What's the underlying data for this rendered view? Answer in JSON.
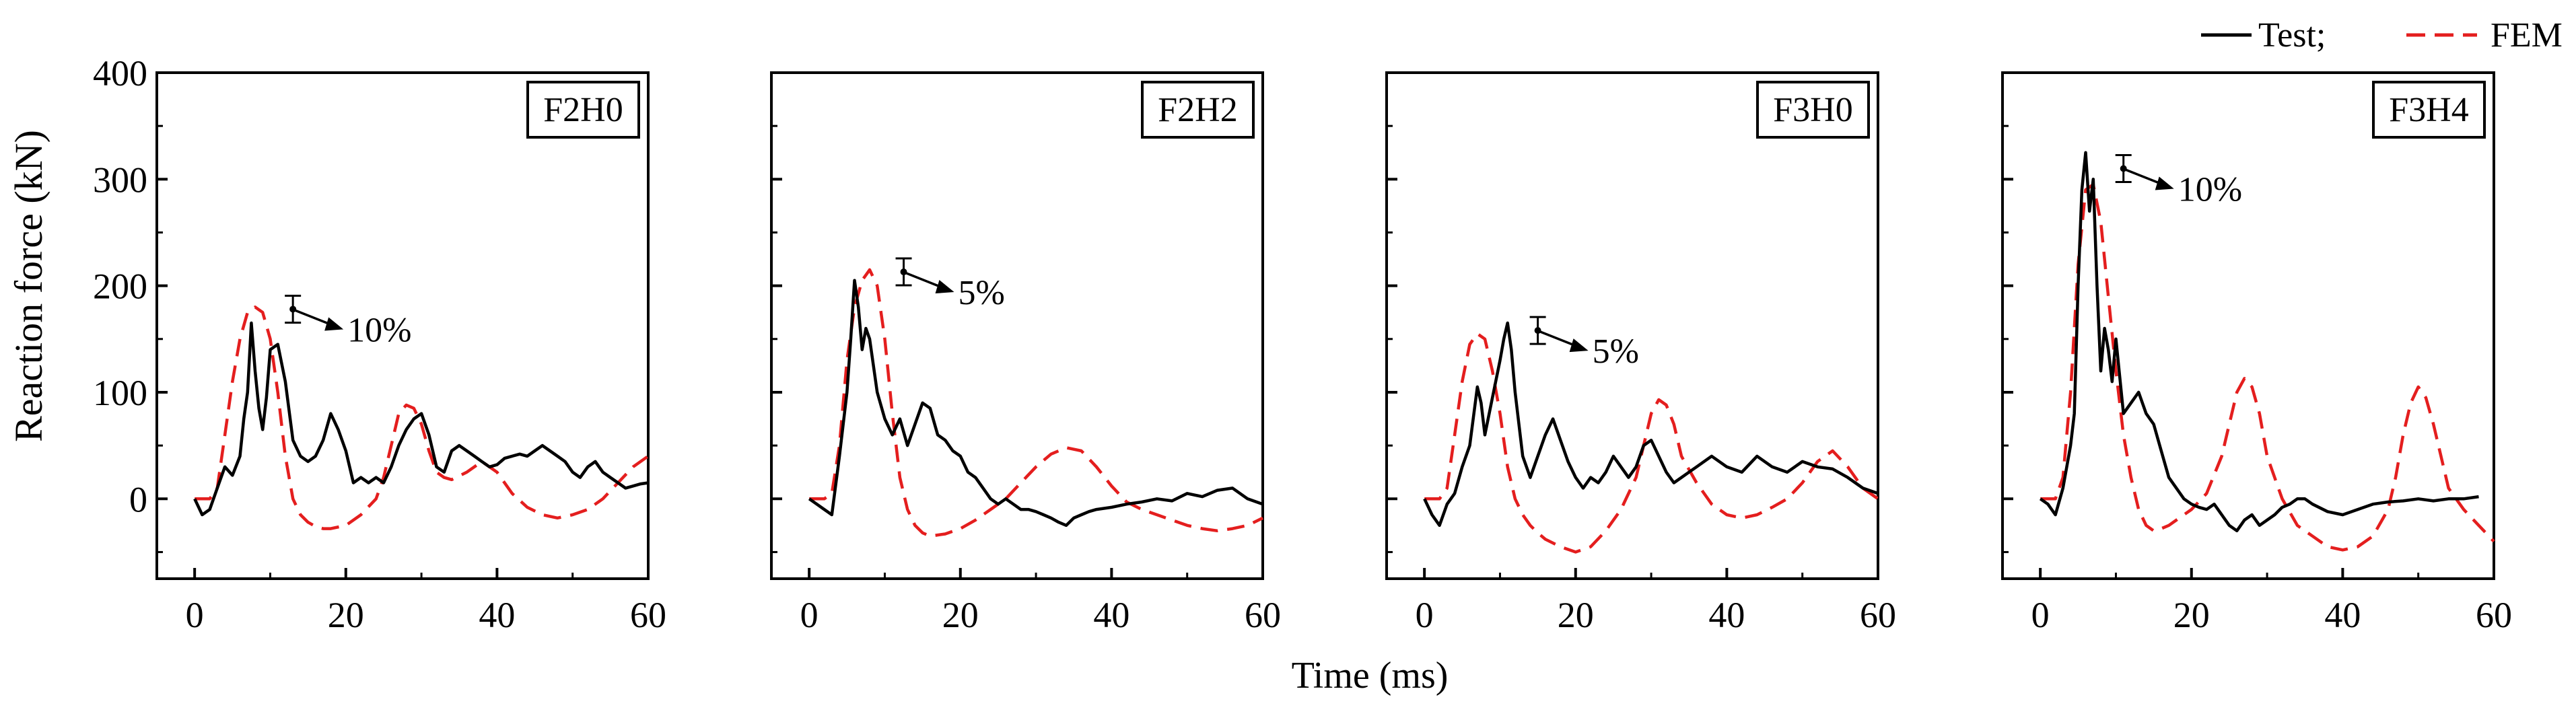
{
  "figure": {
    "xlabel": "Time (ms)",
    "ylabel": "Reaction force (kN)",
    "legend": {
      "position": "top-right",
      "entries": [
        {
          "label": "Test;",
          "color": "#000000",
          "style": "solid"
        },
        {
          "label": "FEM",
          "color": "#e41e1e",
          "style": "dashed"
        }
      ]
    },
    "xticks": [
      "0",
      "20",
      "40",
      "60"
    ],
    "yticks": [
      "0",
      "100",
      "200",
      "300",
      "400"
    ]
  },
  "chart_data": [
    {
      "type": "line",
      "title": "F2H0",
      "xlim": [
        -5,
        60
      ],
      "ylim": [
        -75,
        400
      ],
      "annotation": {
        "text": "10%",
        "x": 13,
        "y": 178
      },
      "series": [
        {
          "name": "Test",
          "color": "#000000",
          "x": [
            0,
            1,
            2,
            3,
            4,
            5,
            6,
            6.5,
            7,
            7.5,
            8,
            8.5,
            9,
            9.5,
            10,
            11,
            12,
            13,
            14,
            15,
            16,
            17,
            18,
            19,
            20,
            21,
            22,
            23,
            24,
            25,
            26,
            27,
            28,
            29,
            30,
            31,
            32,
            33,
            34,
            35,
            36,
            37,
            38,
            39,
            40,
            41,
            42,
            43,
            44,
            45,
            46,
            47,
            48,
            49,
            50,
            51,
            52,
            53,
            54,
            55,
            56,
            57,
            58,
            59,
            60
          ],
          "y": [
            0,
            -15,
            -10,
            10,
            30,
            22,
            40,
            75,
            100,
            165,
            120,
            85,
            65,
            95,
            140,
            145,
            110,
            55,
            40,
            35,
            40,
            55,
            80,
            65,
            45,
            15,
            20,
            15,
            20,
            15,
            30,
            50,
            65,
            75,
            80,
            60,
            30,
            25,
            45,
            50,
            45,
            40,
            35,
            30,
            32,
            38,
            40,
            42,
            40,
            45,
            50,
            45,
            40,
            35,
            25,
            20,
            30,
            35,
            25,
            20,
            15,
            10,
            12,
            14,
            15
          ]
        },
        {
          "name": "FEM",
          "color": "#e41e1e",
          "x": [
            0,
            2,
            3,
            4,
            5,
            6,
            7,
            8,
            9,
            10,
            11,
            12,
            13,
            14,
            15,
            16,
            17,
            18,
            20,
            22,
            24,
            25,
            26,
            27,
            28,
            29,
            30,
            31,
            32,
            33,
            34,
            36,
            38,
            40,
            42,
            44,
            46,
            48,
            50,
            52,
            54,
            56,
            58,
            60
          ],
          "y": [
            0,
            0,
            10,
            60,
            110,
            150,
            175,
            180,
            175,
            150,
            100,
            40,
            0,
            -15,
            -22,
            -26,
            -28,
            -28,
            -25,
            -15,
            0,
            20,
            50,
            80,
            88,
            85,
            70,
            45,
            25,
            20,
            18,
            25,
            35,
            25,
            5,
            -8,
            -15,
            -18,
            -15,
            -10,
            0,
            15,
            30,
            40
          ]
        }
      ]
    },
    {
      "type": "line",
      "title": "F2H2",
      "xlim": [
        -5,
        60
      ],
      "ylim": [
        -75,
        400
      ],
      "annotation": {
        "text": "5%",
        "x": 12.5,
        "y": 213
      },
      "series": [
        {
          "name": "Test",
          "color": "#000000",
          "x": [
            0,
            1,
            2,
            3,
            4,
            5,
            5.5,
            6,
            6.5,
            7,
            7.5,
            8,
            9,
            10,
            11,
            12,
            13,
            14,
            15,
            16,
            17,
            18,
            19,
            20,
            21,
            22,
            23,
            24,
            25,
            26,
            27,
            28,
            29,
            30,
            31,
            32,
            33,
            34,
            35,
            36,
            37,
            38,
            40,
            42,
            44,
            46,
            48,
            50,
            52,
            54,
            56,
            58,
            60
          ],
          "y": [
            0,
            -5,
            -10,
            -15,
            40,
            100,
            150,
            205,
            180,
            140,
            160,
            150,
            100,
            75,
            60,
            75,
            50,
            70,
            90,
            85,
            60,
            55,
            45,
            40,
            25,
            20,
            10,
            0,
            -5,
            0,
            -5,
            -10,
            -10,
            -12,
            -15,
            -18,
            -22,
            -25,
            -18,
            -15,
            -12,
            -10,
            -8,
            -5,
            -3,
            0,
            -2,
            5,
            2,
            8,
            10,
            0,
            -5
          ]
        },
        {
          "name": "FEM",
          "color": "#e41e1e",
          "x": [
            0,
            2,
            3,
            4,
            5,
            6,
            7,
            8,
            9,
            10,
            11,
            12,
            13,
            14,
            15,
            16,
            18,
            20,
            22,
            24,
            26,
            28,
            30,
            32,
            34,
            36,
            38,
            40,
            42,
            44,
            46,
            48,
            50,
            52,
            54,
            56,
            58,
            60
          ],
          "y": [
            0,
            0,
            5,
            50,
            130,
            180,
            205,
            215,
            200,
            150,
            80,
            20,
            -10,
            -25,
            -32,
            -35,
            -33,
            -28,
            -20,
            -10,
            0,
            15,
            30,
            42,
            48,
            45,
            30,
            12,
            -3,
            -10,
            -15,
            -20,
            -25,
            -28,
            -30,
            -28,
            -25,
            -18
          ]
        }
      ]
    },
    {
      "type": "line",
      "title": "F3H0",
      "xlim": [
        -5,
        60
      ],
      "ylim": [
        -75,
        400
      ],
      "annotation": {
        "text": "5%",
        "x": 15,
        "y": 158
      },
      "series": [
        {
          "name": "Test",
          "color": "#000000",
          "x": [
            0,
            1,
            2,
            3,
            4,
            5,
            6,
            7,
            7.5,
            8,
            9,
            10,
            10.5,
            11,
            11.5,
            12,
            13,
            14,
            15,
            16,
            17,
            18,
            19,
            20,
            21,
            22,
            23,
            24,
            25,
            26,
            27,
            28,
            29,
            30,
            31,
            32,
            33,
            34,
            35,
            36,
            38,
            40,
            42,
            44,
            46,
            48,
            50,
            52,
            54,
            56,
            58,
            60
          ],
          "y": [
            0,
            -15,
            -25,
            -5,
            5,
            30,
            50,
            105,
            90,
            60,
            95,
            130,
            150,
            165,
            140,
            100,
            40,
            20,
            40,
            60,
            75,
            55,
            35,
            20,
            10,
            20,
            15,
            25,
            40,
            30,
            20,
            30,
            50,
            55,
            40,
            25,
            15,
            20,
            25,
            30,
            40,
            30,
            25,
            40,
            30,
            25,
            35,
            30,
            28,
            20,
            10,
            5
          ]
        },
        {
          "name": "FEM",
          "color": "#e41e1e",
          "x": [
            0,
            2,
            3,
            4,
            5,
            6,
            7,
            8,
            9,
            10,
            11,
            12,
            13,
            14,
            15,
            16,
            18,
            20,
            22,
            24,
            26,
            28,
            29,
            30,
            31,
            32,
            33,
            34,
            36,
            38,
            40,
            42,
            44,
            46,
            48,
            50,
            52,
            54,
            56,
            58,
            60
          ],
          "y": [
            0,
            0,
            10,
            60,
            110,
            145,
            155,
            150,
            120,
            80,
            30,
            0,
            -15,
            -25,
            -32,
            -38,
            -45,
            -50,
            -45,
            -30,
            -10,
            20,
            50,
            80,
            93,
            88,
            70,
            40,
            15,
            -5,
            -15,
            -18,
            -15,
            -8,
            0,
            15,
            35,
            45,
            30,
            10,
            0
          ]
        }
      ]
    },
    {
      "type": "line",
      "title": "F3H4",
      "xlim": [
        -5,
        60
      ],
      "ylim": [
        -75,
        400
      ],
      "annotation": {
        "text": "10%",
        "x": 11,
        "y": 310
      },
      "series": [
        {
          "name": "Test",
          "color": "#000000",
          "x": [
            0,
            1,
            2,
            3,
            4,
            4.5,
            5,
            5.5,
            6,
            6.5,
            7,
            7.5,
            8,
            8.5,
            9,
            9.5,
            10,
            11,
            12,
            13,
            14,
            15,
            16,
            17,
            18,
            19,
            20,
            21,
            22,
            23,
            24,
            25,
            26,
            27,
            28,
            29,
            30,
            31,
            32,
            33,
            34,
            35,
            36,
            38,
            40,
            42,
            44,
            46,
            48,
            50,
            52,
            54,
            56,
            58
          ],
          "y": [
            0,
            -5,
            -15,
            10,
            50,
            80,
            200,
            290,
            325,
            270,
            300,
            200,
            120,
            160,
            140,
            110,
            150,
            80,
            90,
            100,
            80,
            70,
            45,
            20,
            10,
            0,
            -5,
            -8,
            -10,
            -5,
            -15,
            -25,
            -30,
            -20,
            -15,
            -25,
            -20,
            -15,
            -8,
            -5,
            0,
            0,
            -5,
            -12,
            -15,
            -10,
            -5,
            -3,
            -2,
            0,
            -2,
            0,
            0,
            2
          ]
        },
        {
          "name": "FEM",
          "color": "#e41e1e",
          "x": [
            0,
            2,
            3,
            4,
            5,
            6,
            7,
            8,
            9,
            10,
            11,
            12,
            13,
            14,
            15,
            16,
            17,
            18,
            20,
            22,
            24,
            25,
            26,
            27,
            28,
            29,
            30,
            32,
            34,
            36,
            38,
            40,
            42,
            44,
            46,
            47,
            48,
            49,
            50,
            51,
            52,
            53,
            54,
            56,
            58,
            60
          ],
          "y": [
            0,
            0,
            20,
            100,
            220,
            290,
            295,
            260,
            190,
            120,
            60,
            20,
            -10,
            -25,
            -30,
            -28,
            -25,
            -20,
            -10,
            5,
            40,
            70,
            100,
            113,
            105,
            80,
            40,
            0,
            -25,
            -35,
            -45,
            -48,
            -45,
            -35,
            -10,
            20,
            60,
            90,
            105,
            95,
            70,
            40,
            10,
            -10,
            -25,
            -40
          ]
        }
      ]
    }
  ]
}
